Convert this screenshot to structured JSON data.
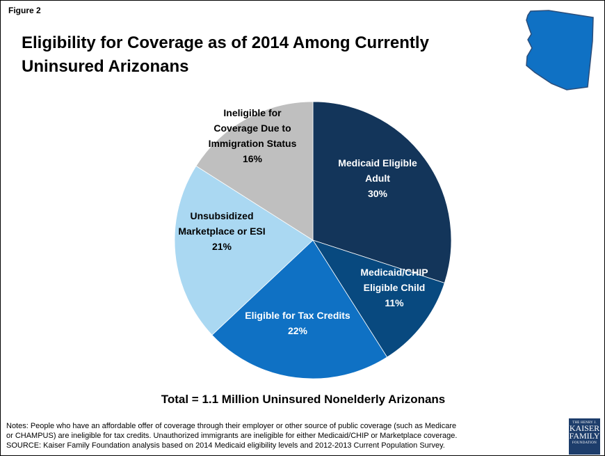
{
  "figure_label": "Figure 2",
  "title": "Eligibility for Coverage as of 2014 Among Currently Uninsured Arizonans",
  "total_text": "Total = 1.1 Million Uninsured Nonelderly Arizonans",
  "notes": [
    "Notes: People who have an affordable offer of coverage through their employer or other source of public coverage (such as Medicare",
    "or CHAMPUS) are ineligible for tax credits. Unauthorized immigrants are ineligible for either Medicaid/CHIP or Marketplace coverage.",
    "SOURCE: Kaiser Family Foundation analysis based on 2014 Medicaid eligibility levels and 2012-2013 Current Population Survey."
  ],
  "logo": {
    "top": "THE HENRY J.",
    "line1": "KAISER",
    "line2": "FAMILY",
    "bottom": "FOUNDATION"
  },
  "state_icon": "arizona-state-icon",
  "state_color": "#0f71c4",
  "chart_data": {
    "type": "pie",
    "start_angle_deg": 0,
    "direction": "clockwise",
    "slices": [
      {
        "label_lines": [
          "Medicaid Eligible",
          "Adult"
        ],
        "value": 30,
        "value_label": "30%",
        "color": "#13355a",
        "text_color": "#ffffff"
      },
      {
        "label_lines": [
          "Medicaid/CHIP",
          "Eligible Child"
        ],
        "value": 11,
        "value_label": "11%",
        "color": "#08497f",
        "text_color": "#ffffff"
      },
      {
        "label_lines": [
          "Eligible for Tax Credits"
        ],
        "value": 22,
        "value_label": "22%",
        "color": "#0f71c4",
        "text_color": "#ffffff"
      },
      {
        "label_lines": [
          "Unsubsidized",
          "Marketplace or ESI"
        ],
        "value": 21,
        "value_label": "21%",
        "color": "#aad8f2",
        "text_color": "#000000"
      },
      {
        "label_lines": [
          "Ineligible for",
          "Coverage Due to",
          "Immigration Status"
        ],
        "value": 16,
        "value_label": "16%",
        "color": "#bfbfbf",
        "text_color": "#000000"
      }
    ]
  }
}
